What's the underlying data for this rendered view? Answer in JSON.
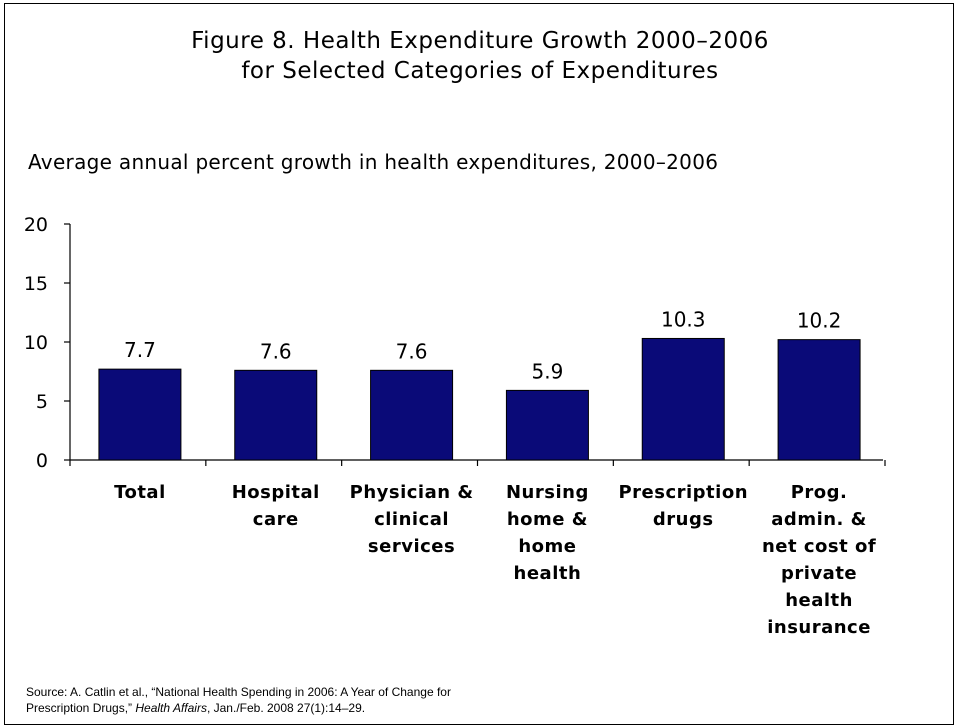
{
  "title": {
    "line1": "Figure 8. Health Expenditure Growth 2000–2006",
    "line2": "for Selected Categories of Expenditures"
  },
  "chart_data": {
    "type": "bar",
    "title": "Figure 8. Health Expenditure Growth 2000–2006 for Selected Categories of Expenditures",
    "subtitle": "Average annual percent growth in health expenditures, 2000–2006",
    "ylabel": "",
    "xlabel": "",
    "ylim": [
      0,
      20
    ],
    "yticks": [
      0,
      5,
      10,
      15,
      20
    ],
    "grid": false,
    "legend": "none",
    "bar_color": "#0a0a78",
    "categories": [
      [
        "Total"
      ],
      [
        "Hospital",
        "care"
      ],
      [
        "Physician &",
        "clinical",
        "services"
      ],
      [
        "Nursing",
        "home &",
        "home",
        "health"
      ],
      [
        "Prescription",
        "drugs"
      ],
      [
        "Prog.",
        "admin. &",
        "net cost of",
        "private",
        "health",
        "insurance"
      ]
    ],
    "values": [
      7.7,
      7.6,
      7.6,
      5.9,
      10.3,
      10.2
    ],
    "value_labels": [
      "7.7",
      "7.6",
      "7.6",
      "5.9",
      "10.3",
      "10.2"
    ]
  },
  "source": {
    "line1": "Source: A. Catlin et al., “National Health Spending in 2006: A Year of Change for",
    "line2_pre": "Prescription Drugs,” ",
    "line2_journal": "Health Affairs",
    "line2_post": ", Jan./Feb. 2008 27(1):14–29."
  }
}
